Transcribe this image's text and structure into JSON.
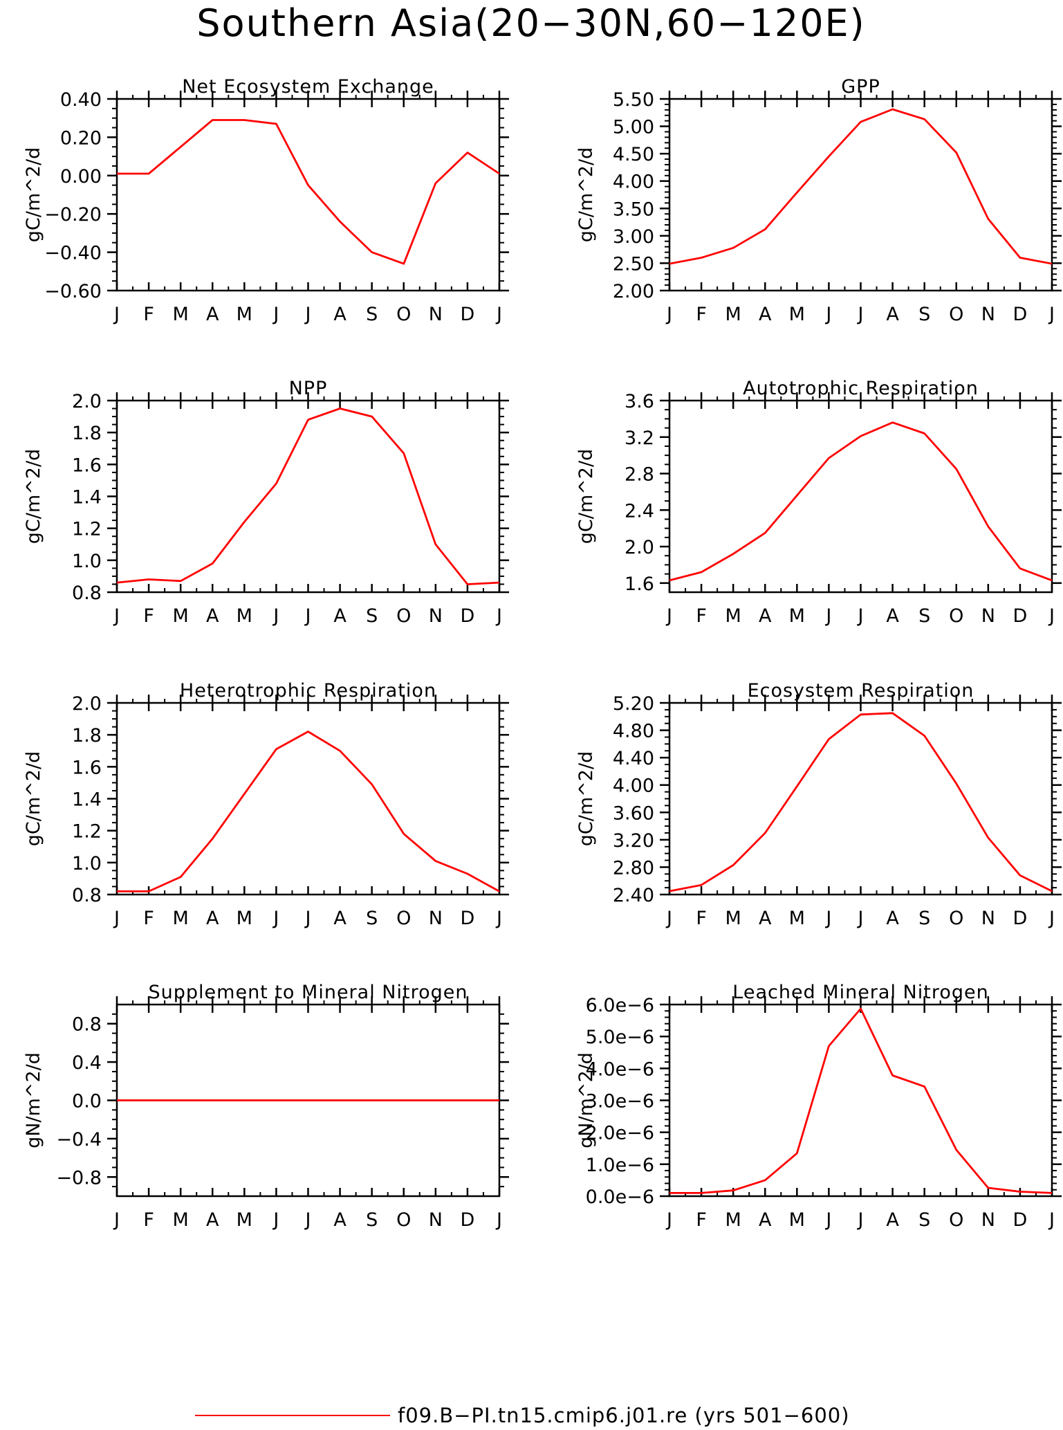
{
  "page_title": "Southern Asia(20−30N,60−120E)",
  "legend": {
    "label": "f09.B−PI.tn15.cmip6.j01.re (yrs 501−600)",
    "position": "bottom-center",
    "color": "#ff0000"
  },
  "months": [
    "J",
    "F",
    "M",
    "A",
    "M",
    "J",
    "J",
    "A",
    "S",
    "O",
    "N",
    "D",
    "J"
  ],
  "chart_data": [
    {
      "type": "line",
      "title": "Net Ecosystem Exchange",
      "ylabel": "gC/m^2/d",
      "xlabel": "",
      "ylim": [
        -0.6,
        0.4
      ],
      "yticks": [
        "0.40",
        "0.20",
        "0.00",
        "−0.20",
        "−0.40",
        "−0.60"
      ],
      "ytick_values": [
        0.4,
        0.2,
        0.0,
        -0.2,
        -0.4,
        -0.6
      ],
      "minor_step": 0.05,
      "color": "#ff0000",
      "series": [
        {
          "values": [
            0.01,
            0.01,
            0.15,
            0.29,
            0.29,
            0.27,
            -0.05,
            -0.24,
            -0.4,
            -0.46,
            -0.04,
            0.12,
            0.01
          ]
        }
      ]
    },
    {
      "type": "line",
      "title": "GPP",
      "ylabel": "gC/m^2/d",
      "xlabel": "",
      "ylim": [
        2.0,
        5.5
      ],
      "yticks": [
        "5.50",
        "5.00",
        "4.50",
        "4.00",
        "3.50",
        "3.00",
        "2.50",
        "2.00"
      ],
      "ytick_values": [
        5.5,
        5.0,
        4.5,
        4.0,
        3.5,
        3.0,
        2.5,
        2.0
      ],
      "minor_step": 0.1,
      "color": "#ff0000",
      "series": [
        {
          "values": [
            2.49,
            2.6,
            2.78,
            3.12,
            3.79,
            4.45,
            5.08,
            5.31,
            5.13,
            4.52,
            3.31,
            2.6,
            2.49
          ]
        }
      ]
    },
    {
      "type": "line",
      "title": "NPP",
      "ylabel": "gC/m^2/d",
      "xlabel": "",
      "ylim": [
        0.8,
        2.0
      ],
      "yticks": [
        "2.0",
        "1.8",
        "1.6",
        "1.4",
        "1.2",
        "1.0",
        "0.8"
      ],
      "ytick_values": [
        2.0,
        1.8,
        1.6,
        1.4,
        1.2,
        1.0,
        0.8
      ],
      "minor_step": 0.05,
      "color": "#ff0000",
      "series": [
        {
          "values": [
            0.86,
            0.88,
            0.87,
            0.98,
            1.24,
            1.48,
            1.88,
            1.95,
            1.9,
            1.67,
            1.1,
            0.85,
            0.86
          ]
        }
      ]
    },
    {
      "type": "line",
      "title": "Autotrophic Respiration",
      "ylabel": "gC/m^2/d",
      "xlabel": "",
      "ylim": [
        1.5,
        3.6
      ],
      "yticks": [
        "3.6",
        "3.2",
        "2.8",
        "2.4",
        "2.0",
        "1.6"
      ],
      "ytick_values": [
        3.6,
        3.2,
        2.8,
        2.4,
        2.0,
        1.6
      ],
      "minor_step": 0.1,
      "color": "#ff0000",
      "series": [
        {
          "values": [
            1.63,
            1.72,
            1.92,
            2.15,
            2.56,
            2.97,
            3.21,
            3.36,
            3.24,
            2.85,
            2.22,
            1.76,
            1.63
          ]
        }
      ]
    },
    {
      "type": "line",
      "title": "Heterotrophic Respiration",
      "ylabel": "gC/m^2/d",
      "xlabel": "",
      "ylim": [
        0.8,
        2.0
      ],
      "yticks": [
        "2.0",
        "1.8",
        "1.6",
        "1.4",
        "1.2",
        "1.0",
        "0.8"
      ],
      "ytick_values": [
        2.0,
        1.8,
        1.6,
        1.4,
        1.2,
        1.0,
        0.8
      ],
      "minor_step": 0.05,
      "color": "#ff0000",
      "series": [
        {
          "values": [
            0.82,
            0.82,
            0.91,
            1.15,
            1.43,
            1.71,
            1.82,
            1.7,
            1.49,
            1.18,
            1.01,
            0.93,
            0.82
          ]
        }
      ]
    },
    {
      "type": "line",
      "title": "Ecosystem Respiration",
      "ylabel": "gC/m^2/d",
      "xlabel": "",
      "ylim": [
        2.4,
        5.2
      ],
      "yticks": [
        "5.20",
        "4.80",
        "4.40",
        "4.00",
        "3.60",
        "3.20",
        "2.80",
        "2.40"
      ],
      "ytick_values": [
        5.2,
        4.8,
        4.4,
        4.0,
        3.6,
        3.2,
        2.8,
        2.4
      ],
      "minor_step": 0.1,
      "color": "#ff0000",
      "series": [
        {
          "values": [
            2.45,
            2.54,
            2.83,
            3.3,
            3.98,
            4.67,
            5.03,
            5.05,
            4.72,
            4.02,
            3.23,
            2.68,
            2.45
          ]
        }
      ]
    },
    {
      "type": "line",
      "title": "Supplement to Mineral Nitrogen",
      "ylabel": "gN/m^2/d",
      "xlabel": "",
      "ylim": [
        -1.0,
        1.0
      ],
      "yticks": [
        "0.8",
        "0.4",
        "0.0",
        "−0.4",
        "−0.8"
      ],
      "ytick_values": [
        0.8,
        0.4,
        0.0,
        -0.4,
        -0.8
      ],
      "minor_step": 0.1,
      "color": "#ff0000",
      "series": [
        {
          "values": [
            0,
            0,
            0,
            0,
            0,
            0,
            0,
            0,
            0,
            0,
            0,
            0,
            0
          ]
        }
      ]
    },
    {
      "type": "line",
      "title": "Leached Mineral Nitrogen",
      "ylabel": "gN/m^2/d",
      "xlabel": "",
      "ylim": [
        0,
        6e-06
      ],
      "yticks": [
        "6.0e−6",
        "5.0e−6",
        "4.0e−6",
        "3.0e−6",
        "2.0e−6",
        "1.0e−6",
        "0.0e−6"
      ],
      "ytick_values": [
        6e-06,
        5e-06,
        4e-06,
        3e-06,
        2e-06,
        1e-06,
        0.0
      ],
      "minor_step": 2e-07,
      "color": "#ff0000",
      "series": [
        {
          "values": [
            1e-07,
            1e-07,
            1.8e-07,
            5e-07,
            1.34e-06,
            4.7e-06,
            5.87e-06,
            3.78e-06,
            3.43e-06,
            1.45e-06,
            2.6e-07,
            1.4e-07,
            1e-07
          ]
        }
      ]
    }
  ]
}
